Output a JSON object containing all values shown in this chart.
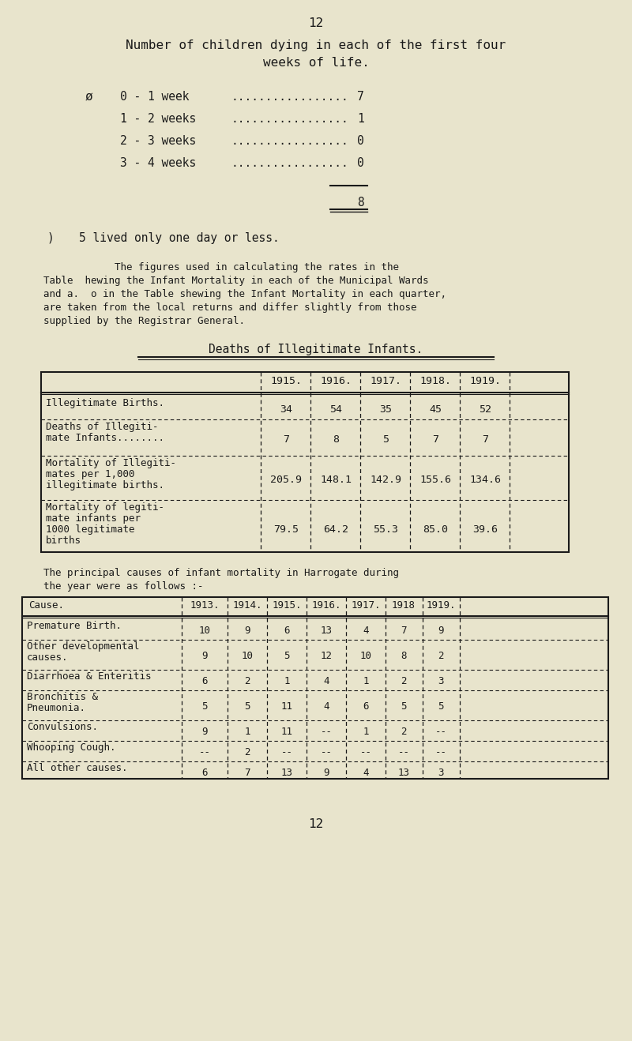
{
  "bg_color": "#e8e4cc",
  "page_number_top": "12",
  "title_line1": "Number of children dying in each of the first four",
  "title_line2": "weeks of life.",
  "weeks_symbol": "ø",
  "weeks_data": [
    {
      "label": "0 - 1 week",
      "dots": ".................",
      "value": "7"
    },
    {
      "label": "1 - 2 weeks",
      "dots": ".................",
      "value": "1"
    },
    {
      "label": "2 - 3 weeks",
      "dots": ".................",
      "value": "0"
    },
    {
      "label": "3 - 4 weeks",
      "dots": ".................",
      "value": "0"
    }
  ],
  "weeks_total": "8",
  "footnote_symbol": ")",
  "footnote_text": "5 lived only one day or less.",
  "paragraph_line1": "            The figures used in calculating the rates in the",
  "paragraph_line2": "Table  hewing the Infant Mortality in each of the Municipal Wards",
  "paragraph_line3": "and a.  o in the Table shewing the Infant Mortality in each quarter,",
  "paragraph_line4": "are taken from the local returns and differ slightly from those",
  "paragraph_line5": "supplied by the Registrar General.",
  "table1_title": "Deaths of Illegitimate Infants.",
  "table1_years": [
    "1915.",
    "1916.",
    "1917.",
    "1918.",
    "1919."
  ],
  "table1_rows": [
    {
      "label1": "Illegitimate Births.",
      "label2": "",
      "label3": "",
      "label4": "",
      "values": [
        "34",
        "54",
        "35",
        "45",
        "52"
      ]
    },
    {
      "label1": "Deaths of Illegiti-",
      "label2": "mate Infants........",
      "label3": "",
      "label4": "",
      "values": [
        "7",
        "8",
        "5",
        "7",
        "7"
      ]
    },
    {
      "label1": "Mortality of Illegiti-",
      "label2": "mates per 1,000",
      "label3": "illegitimate births.",
      "label4": "",
      "values": [
        "205.9",
        "148.1",
        "142.9",
        "155.6",
        "134.6"
      ]
    },
    {
      "label1": "Mortality of legiti-",
      "label2": "mate infants per",
      "label3": "1000 legitimate",
      "label4": "births",
      "values": [
        "79.5",
        "64.2",
        "55.3",
        "85.0",
        "39.6"
      ]
    }
  ],
  "para2_line1": "The principal causes of infant mortality in Harrogate during",
  "para2_line2": "the year were as follows :-",
  "table2_col0_header": "Cause.",
  "table2_years": [
    "1913.",
    "1914.",
    "1915.",
    "1916.",
    "1917.",
    "1918",
    "1919."
  ],
  "table2_rows": [
    {
      "label1": "Premature Birth.",
      "label2": "",
      "values": [
        "10",
        "9",
        "6",
        "13",
        "4",
        "7",
        "9"
      ]
    },
    {
      "label1": "Other developmental",
      "label2": "causes.",
      "values": [
        "9",
        "10",
        "5",
        "12",
        "10",
        "8",
        "2"
      ]
    },
    {
      "label1": "Diarrhoea & Enteritis",
      "label2": "",
      "values": [
        "6",
        "2",
        "1",
        "4",
        "1",
        "2",
        "3"
      ]
    },
    {
      "label1": "Bronchitis &",
      "label2": "Pneumonia.",
      "values": [
        "5",
        "5",
        "11",
        "4",
        "6",
        "5",
        "5"
      ]
    },
    {
      "label1": "Convulsions.",
      "label2": "",
      "values": [
        "9",
        "1",
        "11",
        "--",
        "1",
        "2",
        "--"
      ]
    },
    {
      "label1": "Whooping Cough.",
      "label2": "",
      "values": [
        "--",
        "2",
        "--",
        "--",
        "--",
        "--",
        "--"
      ]
    },
    {
      "label1": "All other causes.",
      "label2": "",
      "values": [
        "6",
        "7",
        "13",
        "9",
        "4",
        "13",
        "3"
      ]
    }
  ],
  "page_number_bottom": "12",
  "text_color": "#1a1a1a",
  "font_size_title": 11.5,
  "font_size_body": 10.5,
  "font_size_table": 9.5,
  "font_size_small": 9.0
}
